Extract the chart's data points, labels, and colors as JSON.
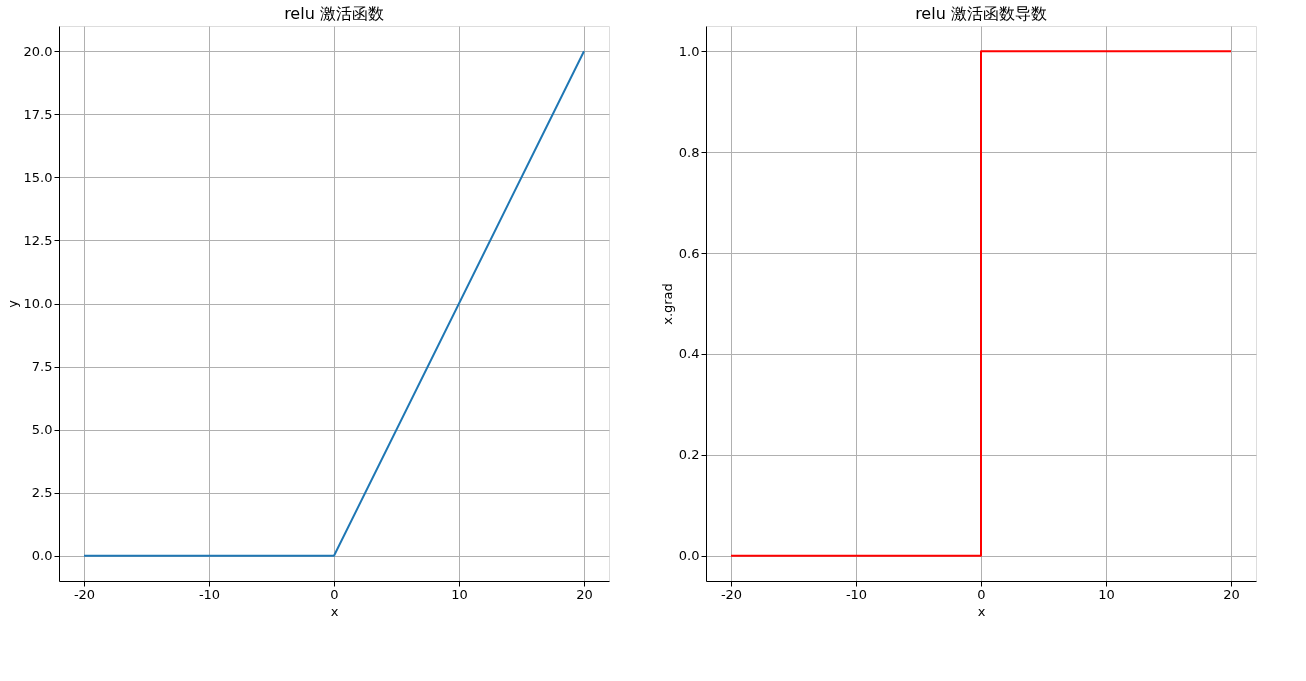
{
  "chart_data": [
    {
      "type": "line",
      "title": "relu 激活函数",
      "xlabel": "x",
      "ylabel": "y",
      "grid": true,
      "x": [
        -20,
        0,
        20
      ],
      "series": [
        {
          "color": "#1f77b4",
          "values": [
            0,
            0,
            20
          ]
        }
      ],
      "xlim": [
        -22,
        22
      ],
      "xticks": [
        -20,
        -10,
        0,
        10,
        20
      ],
      "ylim": [
        -1,
        21
      ],
      "yticks": [
        {
          "value": 0,
          "label": "0.0"
        },
        {
          "value": 2.5,
          "label": "2.5"
        },
        {
          "value": 5,
          "label": "5.0"
        },
        {
          "value": 7.5,
          "label": "7.5"
        },
        {
          "value": 10,
          "label": "10.0"
        },
        {
          "value": 12.5,
          "label": "12.5"
        },
        {
          "value": 15,
          "label": "15.0"
        },
        {
          "value": 17.5,
          "label": "17.5"
        },
        {
          "value": 20,
          "label": "20.0"
        }
      ]
    },
    {
      "type": "line",
      "title": "relu 激活函数导数",
      "xlabel": "x",
      "ylabel": "x.grad",
      "grid": true,
      "x": [
        -20,
        0,
        0,
        20
      ],
      "series": [
        {
          "color": "#ff0000",
          "values": [
            0,
            0,
            1,
            1
          ]
        }
      ],
      "xlim": [
        -22,
        22
      ],
      "xticks": [
        -20,
        -10,
        0,
        10,
        20
      ],
      "ylim": [
        -0.05,
        1.05
      ],
      "yticks": [
        {
          "value": 0,
          "label": "0.0"
        },
        {
          "value": 0.2,
          "label": "0.2"
        },
        {
          "value": 0.4,
          "label": "0.4"
        },
        {
          "value": 0.6,
          "label": "0.6"
        },
        {
          "value": 0.8,
          "label": "0.8"
        },
        {
          "value": 1,
          "label": "1.0"
        }
      ]
    }
  ]
}
